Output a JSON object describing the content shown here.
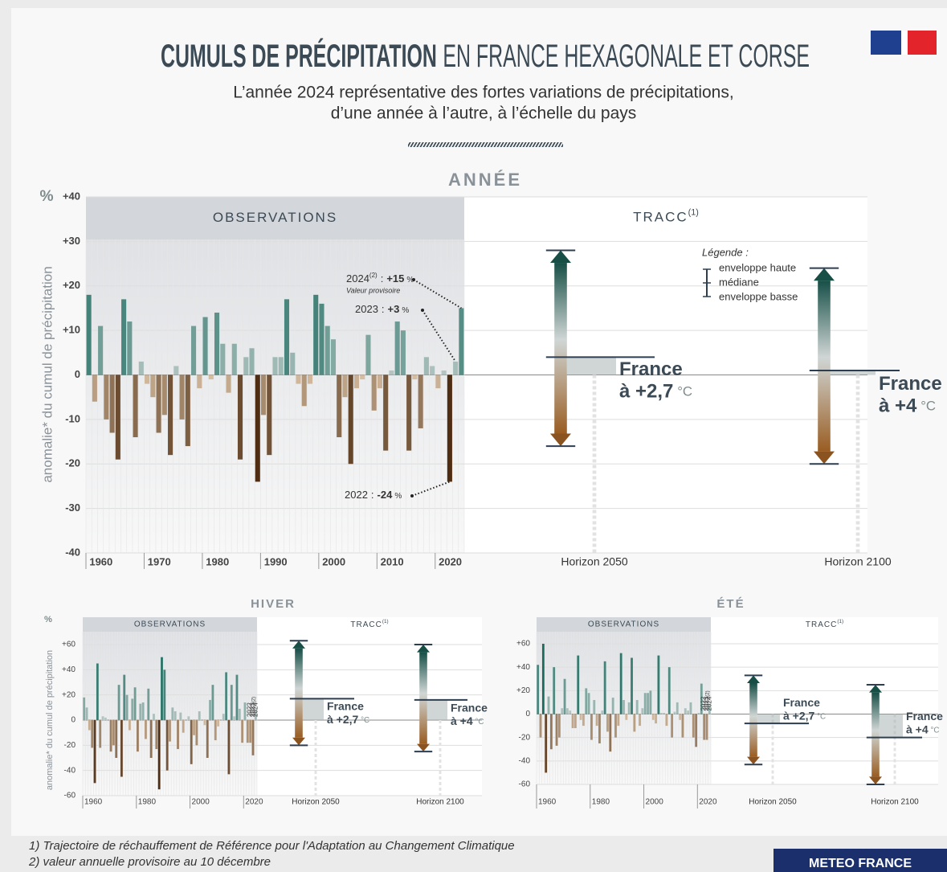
{
  "header": {
    "title_bold": "CUMULS DE PRÉCIPITATION",
    "title_rest": "EN FRANCE HEXAGONALE ET CORSE",
    "subtitle": [
      "L’année 2024 représentative des fortes variations de précipitations,",
      "d’une année à l’autre, à l’échelle du pays"
    ]
  },
  "chart_data": [
    {
      "type": "bar",
      "title": "ANNÉE",
      "y_unit": "%",
      "ylabel": "anomalie* du cumul de précipitation",
      "observations_label": "OBSERVATIONS",
      "tracc_label": "TRACC",
      "tracc_sup": "(1)",
      "categories": [
        "1960",
        null,
        null,
        null,
        null,
        null,
        null,
        null,
        null,
        null,
        "1970",
        null,
        null,
        null,
        null,
        null,
        null,
        null,
        null,
        null,
        "1980",
        null,
        null,
        null,
        null,
        null,
        null,
        null,
        null,
        null,
        "1990",
        null,
        null,
        null,
        null,
        null,
        null,
        null,
        null,
        null,
        "2000",
        null,
        null,
        null,
        null,
        null,
        null,
        null,
        null,
        null,
        "2010",
        null,
        null,
        null,
        null,
        null,
        null,
        null,
        null,
        null,
        "2020",
        null,
        null,
        null,
        null
      ],
      "values": [
        18,
        -6,
        11,
        -10,
        -13,
        -19,
        17,
        12,
        -14,
        3,
        -2,
        -5,
        -13,
        -9,
        -18,
        2,
        -10,
        -16,
        11,
        -3,
        13,
        -1,
        14,
        7,
        -4,
        7,
        -19,
        4,
        6,
        -24,
        -9,
        -18,
        4,
        4,
        17,
        5,
        -2,
        -7,
        -2,
        18,
        16,
        11,
        8,
        -14,
        -5,
        -20,
        -3,
        -1,
        9,
        -8,
        -3,
        -17,
        1,
        12,
        10,
        -17,
        -1,
        -12,
        4,
        2,
        -3,
        1,
        -24,
        3,
        15
      ],
      "positive_color": [
        "#b9c9c6",
        "#1b6b5f"
      ],
      "negative_color": [
        "#dcc3a6",
        "#4e2d12"
      ],
      "ylim": [
        -40,
        40
      ],
      "yticks": [
        {
          "value": 40,
          "label": "+40"
        },
        {
          "value": 30,
          "label": "+30"
        },
        {
          "value": 20,
          "label": "+20"
        },
        {
          "value": 10,
          "label": "+10"
        },
        0,
        -10,
        -20,
        -30,
        -40
      ],
      "grid": true,
      "horizons": [
        {
          "name": "Horizon 2050",
          "warming_label": "France",
          "warming_value": "à +2,7",
          "unit": "°C",
          "high": 28,
          "median": 4,
          "low": -16
        },
        {
          "name": "Horizon 2100",
          "warming_label": "France",
          "warming_value": "à +4",
          "unit": "°C",
          "high": 24,
          "median": 1,
          "low": -20
        }
      ],
      "legend": {
        "title": "Légende :",
        "items": [
          "enveloppe haute",
          "médiane",
          "enveloppe basse"
        ]
      },
      "annotations": [
        {
          "year": "2024",
          "sup": "(2)",
          "separator": ":",
          "value": "+15",
          "unit": "%",
          "note": "Valeur provisoire"
        },
        {
          "year": "2023",
          "separator": ":",
          "value": "+3",
          "unit": "%"
        },
        {
          "year": "2022",
          "separator": ":",
          "value": "-24",
          "unit": "%"
        }
      ]
    },
    {
      "type": "bar",
      "title": "HIVER",
      "y_unit": "%",
      "ylabel": "anomalie* du cumul de précipitation",
      "observations_label": "OBSERVATIONS",
      "tracc_label": "TRACC",
      "tracc_sup": "(1)",
      "categories": [
        "1960",
        null,
        null,
        null,
        null,
        null,
        null,
        null,
        null,
        null,
        null,
        null,
        null,
        null,
        null,
        null,
        null,
        null,
        null,
        null,
        "1980",
        null,
        null,
        null,
        null,
        null,
        null,
        null,
        null,
        null,
        null,
        null,
        null,
        null,
        null,
        null,
        null,
        null,
        null,
        null,
        "2000",
        null,
        null,
        null,
        null,
        null,
        null,
        null,
        null,
        null,
        null,
        null,
        null,
        null,
        null,
        null,
        null,
        null,
        null,
        null,
        "2020",
        null,
        null,
        null,
        null
      ],
      "values": [
        18,
        10,
        -8,
        -22,
        -50,
        45,
        -22,
        3,
        2,
        0,
        -25,
        -20,
        -30,
        28,
        -45,
        36,
        20,
        -8,
        17,
        26,
        -25,
        13,
        14,
        -15,
        25,
        -30,
        5,
        -23,
        -55,
        50,
        40,
        -40,
        -17,
        10,
        7,
        -23,
        6,
        -10,
        0,
        3,
        -35,
        -12,
        -20,
        7,
        0,
        -4,
        -30,
        16,
        28,
        -16,
        -5,
        0,
        5,
        38,
        -43,
        28,
        3,
        36,
        9,
        -18,
        14,
        -18,
        -18,
        -28,
        8
      ],
      "positive_color": [
        "#b9c9c6",
        "#1b6b5f"
      ],
      "negative_color": [
        "#dcc3a6",
        "#4e2d12"
      ],
      "ylim": [
        -60,
        60
      ],
      "yticks": [
        {
          "value": 60,
          "label": "+60"
        },
        {
          "value": 40,
          "label": "+40"
        },
        {
          "value": 20,
          "label": "+20"
        },
        0,
        -20,
        -40,
        -60
      ],
      "grid": true,
      "horizons": [
        {
          "name": "Horizon 2050",
          "warming_label": "France",
          "warming_value": "à +2,7",
          "unit": "°C",
          "high": 63,
          "median": 17,
          "low": -20
        },
        {
          "name": "Horizon 2100",
          "warming_label": "France",
          "warming_value": "à +4",
          "unit": "°C",
          "high": 60,
          "median": 16,
          "low": -25
        }
      ],
      "bar_labels": [
        {
          "text": "2022"
        },
        {
          "text": "2023"
        },
        {
          "text": "2024",
          "sup": "(2)"
        }
      ]
    },
    {
      "type": "bar",
      "title": "ÉTÉ",
      "observations_label": "OBSERVATIONS",
      "tracc_label": "TRACC",
      "tracc_sup": "(1)",
      "categories": [
        "1960",
        null,
        null,
        null,
        null,
        null,
        null,
        null,
        null,
        null,
        null,
        null,
        null,
        null,
        null,
        null,
        null,
        null,
        null,
        null,
        "1980",
        null,
        null,
        null,
        null,
        null,
        null,
        null,
        null,
        null,
        null,
        null,
        null,
        null,
        null,
        null,
        null,
        null,
        null,
        null,
        "2000",
        null,
        null,
        null,
        null,
        null,
        null,
        null,
        null,
        null,
        null,
        null,
        null,
        null,
        null,
        null,
        null,
        null,
        null,
        null,
        "2020",
        null,
        null,
        null,
        null
      ],
      "values": [
        42,
        -20,
        60,
        -50,
        15,
        -30,
        40,
        -27,
        -20,
        5,
        30,
        5,
        3,
        -12,
        -12,
        50,
        -5,
        -10,
        22,
        18,
        -22,
        12,
        -10,
        -25,
        3,
        45,
        -15,
        -32,
        14,
        -20,
        -10,
        52,
        12,
        -5,
        10,
        48,
        -15,
        12,
        -10,
        5,
        18,
        18,
        20,
        -5,
        -8,
        50,
        1,
        1,
        -10,
        40,
        -20,
        2,
        10,
        -5,
        -20,
        5,
        3,
        10,
        -20,
        -28,
        1,
        26,
        -22,
        -22,
        8
      ],
      "positive_color": [
        "#b9c9c6",
        "#1b6b5f"
      ],
      "negative_color": [
        "#dcc3a6",
        "#4e2d12"
      ],
      "ylim": [
        -60,
        60
      ],
      "yticks": [
        {
          "value": 60,
          "label": "+60"
        },
        {
          "value": 40,
          "label": "+40"
        },
        {
          "value": 20,
          "label": "+20"
        },
        0,
        -20,
        -40,
        -60
      ],
      "grid": true,
      "horizons": [
        {
          "name": "Horizon 2050",
          "warming_label": "France",
          "warming_value": "à +2,7",
          "unit": "°C",
          "high": 33,
          "median": -8,
          "low": -43
        },
        {
          "name": "Horizon 2100",
          "warming_label": "France",
          "warming_value": "à +4",
          "unit": "°C",
          "high": 25,
          "median": -20,
          "low": -60
        }
      ],
      "bar_labels": [
        {
          "text": "2022"
        },
        {
          "text": "2023"
        },
        {
          "text": "2024",
          "sup": "(2)"
        }
      ]
    }
  ],
  "footnotes": [
    "1) Trajectoire de réchauffement de Référence pour l'Adaptation au Changement Climatique",
    "2) valeur annuelle provisoire au 10 décembre"
  ],
  "brand": "METEO FRANCE"
}
